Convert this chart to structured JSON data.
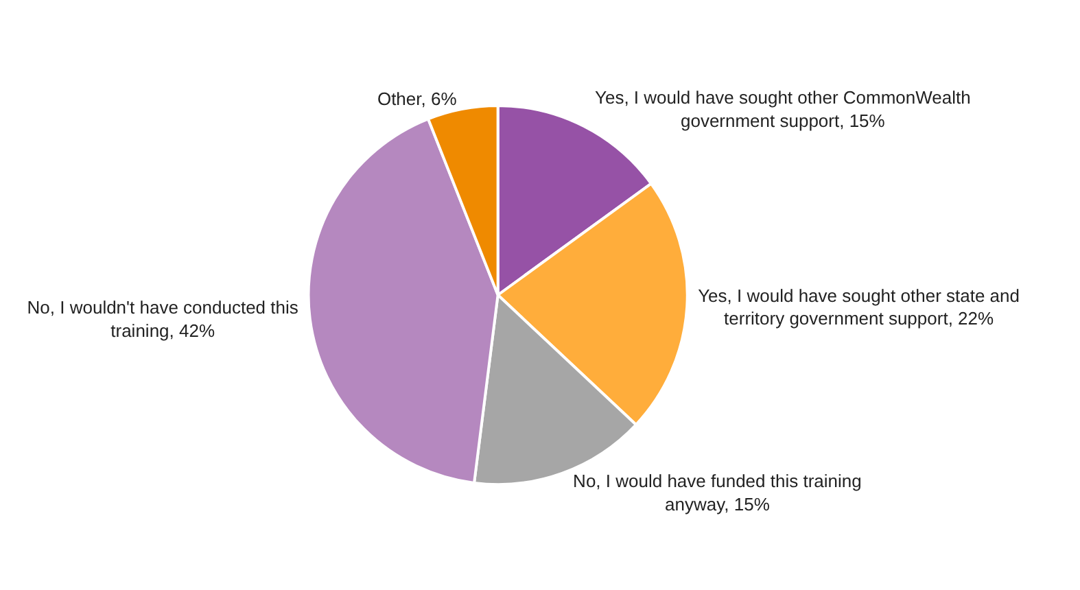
{
  "chart_data": {
    "type": "pie",
    "categories": [
      "Yes, I would have sought other CommonWealth government support",
      "Yes, I would have sought other state and territory government support",
      "No, I would have funded this training anyway",
      "No, I wouldn't have conducted this training",
      "Other"
    ],
    "values": [
      15,
      22,
      15,
      42,
      6
    ],
    "value_labels": [
      "15%",
      "22%",
      "15%",
      "42%",
      "6%"
    ],
    "colors": [
      "#9652a6",
      "#ffad3b",
      "#a6a6a6",
      "#b588bf",
      "#ef8a00"
    ],
    "legend": false
  }
}
